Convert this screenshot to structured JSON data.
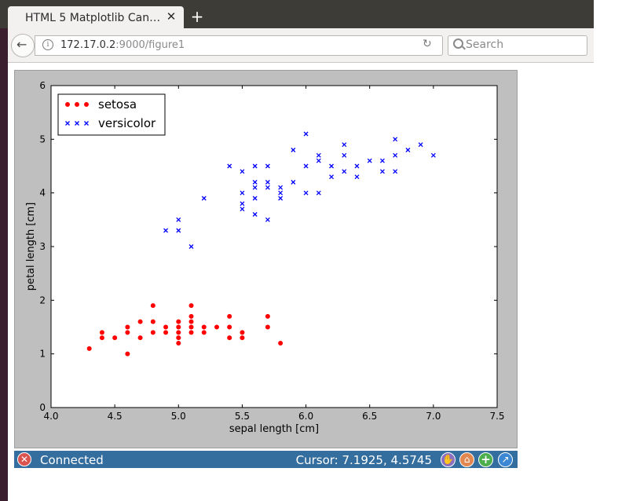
{
  "browser": {
    "tab_title": "HTML 5 Matplotlib Can…",
    "tab_close": "✕",
    "new_tab": "+",
    "url_host": "172.17.0.2",
    "url_path": ":9000/figure1",
    "search_placeholder": "Search"
  },
  "status": {
    "text": "Connected",
    "cursor": "Cursor: 7.1925, 4.5745"
  },
  "chart_data": {
    "type": "scatter",
    "title": "",
    "xlabel": "sepal length [cm]",
    "ylabel": "petal length [cm]",
    "xlim": [
      4.0,
      7.5
    ],
    "ylim": [
      0,
      6
    ],
    "xticks": [
      "4.0",
      "4.5",
      "5.0",
      "5.5",
      "6.0",
      "6.5",
      "7.0",
      "7.5"
    ],
    "yticks": [
      "0",
      "1",
      "2",
      "3",
      "4",
      "5",
      "6"
    ],
    "legend_position": "top-left",
    "grid": false,
    "series": [
      {
        "name": "setosa",
        "marker": "circle",
        "color": "#ff0000",
        "points": [
          [
            4.3,
            1.1
          ],
          [
            4.4,
            1.3
          ],
          [
            4.4,
            1.4
          ],
          [
            4.5,
            1.3
          ],
          [
            4.6,
            1.0
          ],
          [
            4.6,
            1.4
          ],
          [
            4.6,
            1.5
          ],
          [
            4.7,
            1.3
          ],
          [
            4.7,
            1.6
          ],
          [
            4.8,
            1.4
          ],
          [
            4.8,
            1.6
          ],
          [
            4.8,
            1.9
          ],
          [
            4.9,
            1.4
          ],
          [
            4.9,
            1.5
          ],
          [
            5.0,
            1.2
          ],
          [
            5.0,
            1.3
          ],
          [
            5.0,
            1.4
          ],
          [
            5.0,
            1.5
          ],
          [
            5.0,
            1.6
          ],
          [
            5.1,
            1.4
          ],
          [
            5.1,
            1.5
          ],
          [
            5.1,
            1.7
          ],
          [
            5.1,
            1.9
          ],
          [
            5.1,
            1.6
          ],
          [
            5.2,
            1.4
          ],
          [
            5.2,
            1.5
          ],
          [
            5.3,
            1.5
          ],
          [
            5.4,
            1.3
          ],
          [
            5.4,
            1.5
          ],
          [
            5.4,
            1.7
          ],
          [
            5.5,
            1.3
          ],
          [
            5.5,
            1.4
          ],
          [
            5.7,
            1.5
          ],
          [
            5.7,
            1.7
          ],
          [
            5.8,
            1.2
          ]
        ]
      },
      {
        "name": "versicolor",
        "marker": "x",
        "color": "#0000ff",
        "points": [
          [
            4.9,
            3.3
          ],
          [
            5.0,
            3.3
          ],
          [
            5.0,
            3.5
          ],
          [
            5.1,
            3.0
          ],
          [
            5.2,
            3.9
          ],
          [
            5.4,
            4.5
          ],
          [
            5.5,
            3.7
          ],
          [
            5.5,
            3.8
          ],
          [
            5.5,
            4.0
          ],
          [
            5.5,
            4.4
          ],
          [
            5.6,
            3.6
          ],
          [
            5.6,
            3.9
          ],
          [
            5.6,
            4.1
          ],
          [
            5.6,
            4.2
          ],
          [
            5.6,
            4.5
          ],
          [
            5.7,
            3.5
          ],
          [
            5.7,
            4.1
          ],
          [
            5.7,
            4.2
          ],
          [
            5.7,
            4.5
          ],
          [
            5.8,
            3.9
          ],
          [
            5.8,
            4.0
          ],
          [
            5.8,
            4.1
          ],
          [
            5.9,
            4.2
          ],
          [
            5.9,
            4.8
          ],
          [
            6.0,
            4.0
          ],
          [
            6.0,
            4.5
          ],
          [
            6.0,
            5.1
          ],
          [
            6.1,
            4.0
          ],
          [
            6.1,
            4.6
          ],
          [
            6.1,
            4.7
          ],
          [
            6.2,
            4.3
          ],
          [
            6.2,
            4.5
          ],
          [
            6.3,
            4.4
          ],
          [
            6.3,
            4.7
          ],
          [
            6.3,
            4.9
          ],
          [
            6.4,
            4.3
          ],
          [
            6.4,
            4.5
          ],
          [
            6.5,
            4.6
          ],
          [
            6.6,
            4.4
          ],
          [
            6.6,
            4.6
          ],
          [
            6.7,
            4.4
          ],
          [
            6.7,
            4.7
          ],
          [
            6.7,
            5.0
          ],
          [
            6.8,
            4.8
          ],
          [
            6.9,
            4.9
          ],
          [
            7.0,
            4.7
          ]
        ]
      }
    ]
  }
}
